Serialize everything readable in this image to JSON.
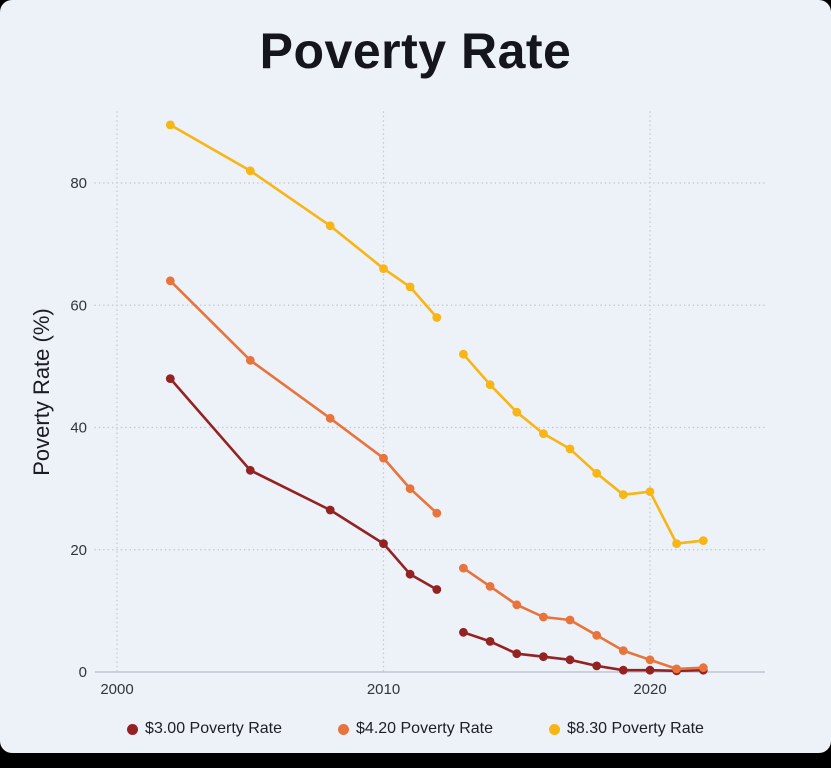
{
  "title": "Poverty Rate",
  "colors": {
    "background": "#edf1f8",
    "frame": "#000000",
    "grid": "#c7c8cd",
    "axis": "#c2c6d0",
    "tick_text": "#33353d",
    "title_text": "#15151d"
  },
  "chart_data": {
    "type": "line",
    "title": "Poverty Rate",
    "xlabel": "",
    "ylabel": "Poverty Rate (%)",
    "legend_position": "bottom",
    "grid": "dotted",
    "xlim": [
      1999,
      2024
    ],
    "ylim": [
      0,
      93
    ],
    "xticks": [
      2000,
      2010,
      2020
    ],
    "yticks": [
      0,
      20,
      40,
      60,
      80
    ],
    "x": [
      2002,
      2005,
      2008,
      2010,
      2011,
      2012,
      2013,
      2014,
      2015,
      2016,
      2017,
      2018,
      2019,
      2020,
      2021,
      2022
    ],
    "gap_after_index": 5,
    "series": [
      {
        "name": "$3.00 Poverty Rate",
        "color": "#932222",
        "values": [
          48,
          33,
          26.5,
          21,
          16,
          13.5,
          6.5,
          5,
          3,
          2.5,
          2,
          1,
          0.3,
          0.3,
          0.2,
          0.3
        ]
      },
      {
        "name": "$4.20 Poverty Rate",
        "color": "#e8743c",
        "values": [
          64,
          51,
          41.5,
          35,
          30,
          26,
          17,
          14,
          11,
          9,
          8.5,
          6,
          3.5,
          2,
          0.5,
          0.7
        ]
      },
      {
        "name": "$8.30 Poverty Rate",
        "color": "#f7b516",
        "values": [
          89.5,
          82,
          73,
          66,
          63,
          58,
          52,
          47,
          42.5,
          39,
          36.5,
          32.5,
          29,
          29.5,
          21,
          21.5
        ]
      }
    ]
  }
}
